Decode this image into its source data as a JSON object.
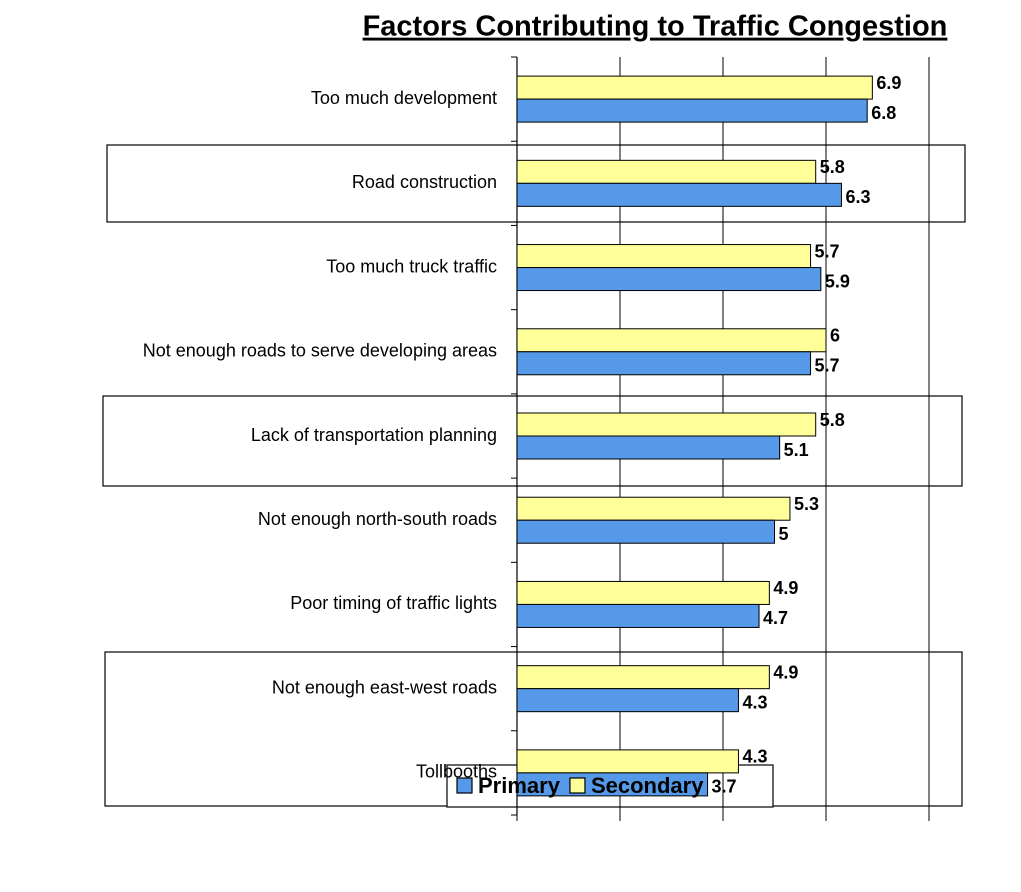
{
  "chart_data": {
    "type": "hbar",
    "title": "Factors Contributing to Traffic Congestion",
    "categories": [
      "Too much development",
      "Road construction",
      "Too much truck traffic",
      "Not enough roads to serve developing areas",
      "Lack of transportation planning",
      "Not enough north-south roads",
      "Poor timing of traffic lights",
      "Not enough east-west roads",
      "Tollbooths"
    ],
    "series": [
      {
        "name": "Primary",
        "color": "#5599e8",
        "values": [
          6.8,
          6.3,
          5.9,
          5.7,
          5.1,
          5,
          4.7,
          4.3,
          3.7
        ]
      },
      {
        "name": "Secondary",
        "color": "#ffff99",
        "values": [
          6.9,
          5.8,
          5.7,
          6,
          5.8,
          5.3,
          4.9,
          4.9,
          4.3
        ]
      }
    ],
    "xlim": [
      0,
      8
    ],
    "xticks": [
      0,
      2,
      4,
      6,
      8
    ],
    "grid": true,
    "legend": "bottom"
  }
}
